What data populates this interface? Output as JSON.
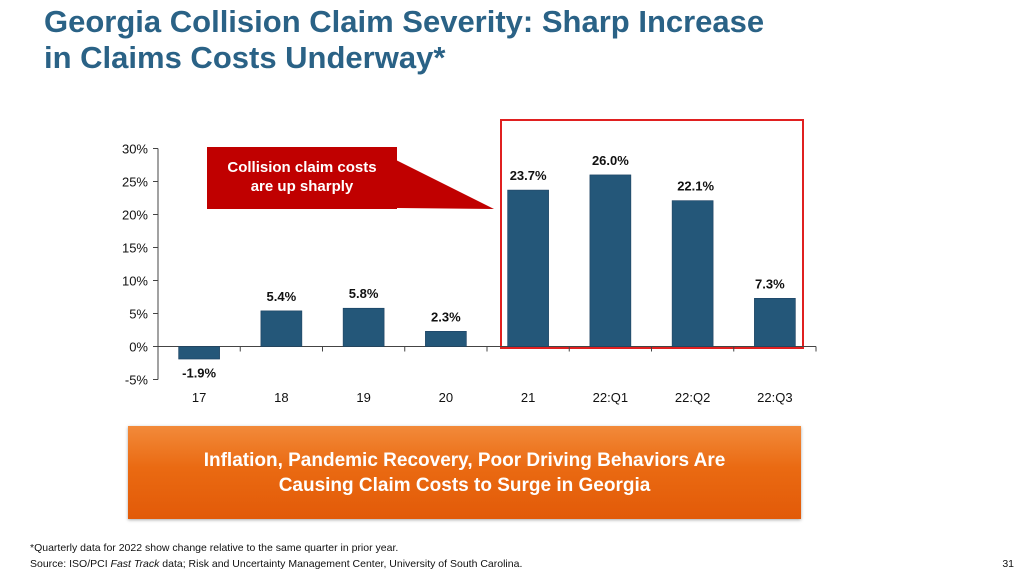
{
  "title": {
    "line1": "Georgia Collision Claim Severity: Sharp Increase",
    "line2": "in Claims Costs Underway*"
  },
  "callout": {
    "line1": "Collision claim costs",
    "line2": "are up sharply"
  },
  "banner": {
    "line1": "Inflation, Pandemic Recovery, Poor Driving Behaviors Are",
    "line2": "Causing Claim Costs to Surge in Georgia"
  },
  "footnote": {
    "note": "*Quarterly data for 2022 show change relative to the same quarter in prior year.",
    "source_prefix": "Source: ISO/PCI ",
    "source_italic": "Fast Track",
    "source_suffix": " data; Risk and Uncertainty Management Center, University of South Carolina."
  },
  "page_number": "31",
  "colors": {
    "title": "#2a6286",
    "bar": "#245779",
    "callout": "#c00000",
    "highlight_border": "#e02020",
    "banner": "#ea6a12"
  },
  "chart_data": {
    "type": "bar",
    "categories": [
      "17",
      "18",
      "19",
      "20",
      "21",
      "22:Q1",
      "22:Q2",
      "22:Q3"
    ],
    "values": [
      -1.9,
      5.4,
      5.8,
      2.3,
      23.7,
      26.0,
      22.1,
      7.3
    ],
    "value_labels": [
      "-1.9%",
      "5.4%",
      "5.8%",
      "2.3%",
      "23.7%",
      "26.0%",
      "22.1%",
      "7.3%"
    ],
    "ylim": [
      -5,
      30
    ],
    "yticks": [
      -5,
      0,
      5,
      10,
      15,
      20,
      25,
      30
    ],
    "ytick_labels": [
      "-5%",
      "0%",
      "5%",
      "10%",
      "15%",
      "20%",
      "25%",
      "30%"
    ],
    "highlight_range": [
      "21",
      "22:Q3"
    ],
    "xlabel": "",
    "ylabel": "",
    "grid": false
  }
}
